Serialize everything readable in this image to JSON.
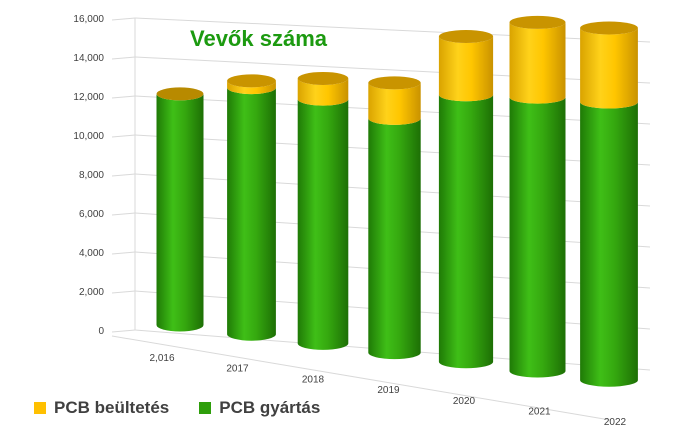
{
  "chart_data": {
    "type": "bar",
    "title": "Vevők száma",
    "categories": [
      "2,016",
      "2017",
      "2018",
      "2019",
      "2020",
      "2021",
      "2022"
    ],
    "series": [
      {
        "name": "PCB gyártás",
        "color": "#2e9e0b",
        "values": [
          10600,
          11000,
          10600,
          9900,
          11000,
          11000,
          10900
        ]
      },
      {
        "name": "PCB beültetés",
        "color": "#ffc000",
        "values": [
          0,
          300,
          900,
          1500,
          2400,
          3000,
          2900
        ]
      }
    ],
    "y_ticks": [
      "0",
      "2,000",
      "4,000",
      "6,000",
      "8,000",
      "10,000",
      "12,000",
      "14,000",
      "16,000"
    ],
    "ylim": [
      0,
      16000
    ],
    "grid": true,
    "legend_position": "bottom-left",
    "legend_order": [
      "PCB beültetés",
      "PCB gyártás"
    ]
  }
}
